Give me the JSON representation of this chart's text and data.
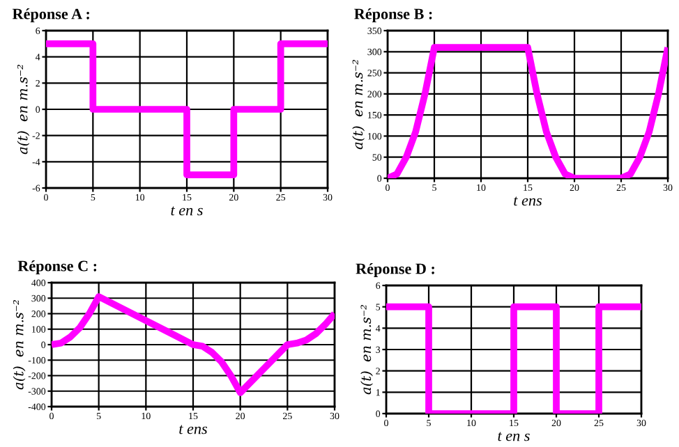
{
  "chart_data": [
    {
      "type": "line",
      "title": "Réponse A :",
      "xlabel": "t en s",
      "ylabel": "a(t)  en m.s⁻²",
      "x": [
        0,
        5,
        5,
        15,
        15,
        20,
        20,
        25,
        25,
        30
      ],
      "series": [
        {
          "color": "#ff00ff",
          "values": [
            5,
            5,
            0,
            0,
            -5,
            -5,
            0,
            0,
            5,
            5
          ]
        }
      ],
      "xlim": [
        0,
        30
      ],
      "xticks": [
        0,
        5,
        10,
        15,
        20,
        25,
        30
      ],
      "ylim": [
        -6,
        6
      ],
      "yticks": [
        -6,
        -4,
        -2,
        0,
        2,
        4,
        6
      ],
      "grid": true,
      "legend": false
    },
    {
      "type": "line",
      "title": "Réponse B :",
      "xlabel": "t ens",
      "ylabel": "a(t)  en m.s⁻²",
      "x": [
        0,
        1,
        2,
        3,
        4,
        5,
        15,
        16,
        17,
        18,
        19,
        20,
        25,
        26,
        27,
        28,
        29,
        30
      ],
      "series": [
        {
          "color": "#ff00ff",
          "values": [
            0,
            10,
            50,
            110,
            200,
            310,
            310,
            200,
            110,
            50,
            10,
            0,
            0,
            10,
            50,
            110,
            200,
            310
          ]
        }
      ],
      "xlim": [
        0,
        30
      ],
      "xticks": [
        0,
        5,
        10,
        15,
        20,
        25,
        30
      ],
      "ylim": [
        0,
        350
      ],
      "yticks": [
        0,
        50,
        100,
        150,
        200,
        250,
        300,
        350
      ],
      "grid": true,
      "legend": false
    },
    {
      "type": "line",
      "title": "Réponse C :",
      "xlabel": "t ens",
      "ylabel": "a(t)  en m.s⁻²",
      "x": [
        0,
        1,
        2,
        3,
        4,
        5,
        15,
        16,
        17,
        18,
        19,
        20,
        25,
        26,
        27,
        28,
        29,
        30
      ],
      "series": [
        {
          "color": "#ff00ff",
          "values": [
            0,
            10,
            50,
            110,
            200,
            310,
            0,
            -10,
            -50,
            -110,
            -200,
            -310,
            0,
            10,
            30,
            70,
            130,
            200
          ]
        }
      ],
      "xlim": [
        0,
        30
      ],
      "xticks": [
        0,
        5,
        10,
        15,
        20,
        25,
        30
      ],
      "ylim": [
        -400,
        400
      ],
      "yticks": [
        -400,
        -300,
        -200,
        -100,
        0,
        100,
        200,
        300,
        400
      ],
      "grid": true,
      "legend": false
    },
    {
      "type": "line",
      "title": "Réponse D :",
      "xlabel": "t en s",
      "ylabel": "a(t)  en m.s⁻²",
      "x": [
        0,
        5,
        5,
        15,
        15,
        20,
        20,
        25,
        25,
        30
      ],
      "series": [
        {
          "color": "#ff00ff",
          "values": [
            5,
            5,
            0,
            0,
            5,
            5,
            0,
            0,
            5,
            5
          ]
        }
      ],
      "xlim": [
        0,
        30
      ],
      "xticks": [
        0,
        5,
        10,
        15,
        20,
        25,
        30
      ],
      "ylim": [
        0,
        6
      ],
      "yticks": [
        0,
        1,
        2,
        3,
        4,
        5,
        6
      ],
      "grid": true,
      "legend": false
    }
  ]
}
